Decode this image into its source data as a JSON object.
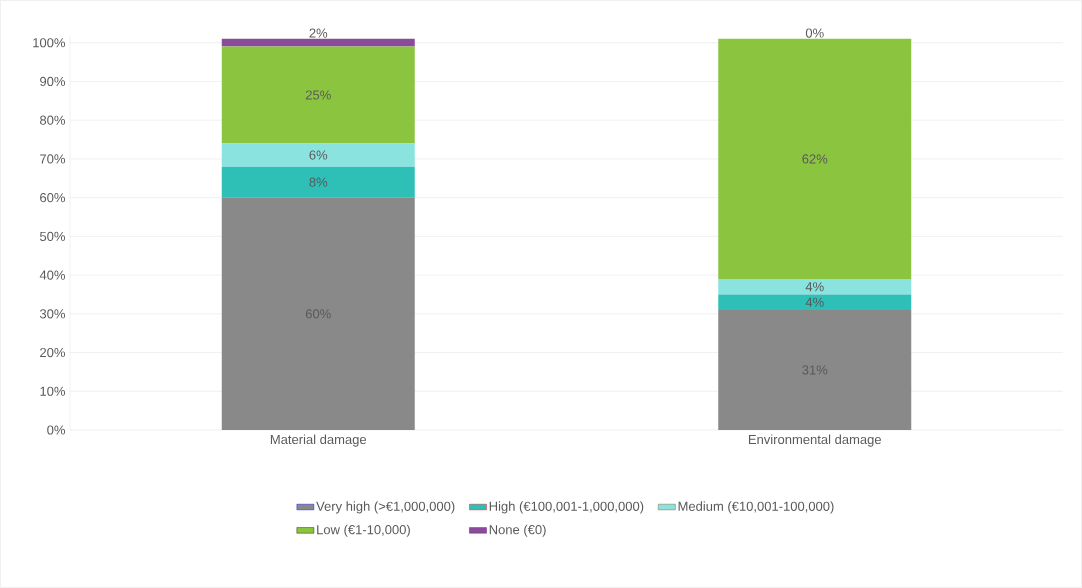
{
  "chart_data": {
    "type": "bar",
    "stacked": true,
    "categories": [
      "Material damage",
      "Environmental damage"
    ],
    "series": [
      {
        "name": "Very high (>€1,000,000)",
        "color": "#898989",
        "values": [
          60,
          31
        ],
        "value_labels": [
          "60%",
          "31%"
        ]
      },
      {
        "name": "High (€100,001-1,000,000)",
        "color": "#2ebfb7",
        "values": [
          8,
          4
        ],
        "value_labels": [
          "8%",
          "4%"
        ]
      },
      {
        "name": "Medium (€10,001-100,000)",
        "color": "#8ae3df",
        "values": [
          6,
          4
        ],
        "value_labels": [
          "6%",
          "4%"
        ]
      },
      {
        "name": "Low (€1-10,000)",
        "color": "#8bc540",
        "values": [
          25,
          62
        ],
        "value_labels": [
          "25%",
          "62%"
        ]
      },
      {
        "name": "None (€0)",
        "color": "#8a4b9a",
        "values": [
          2,
          0
        ],
        "value_labels": [
          "2%",
          "0%"
        ]
      }
    ],
    "ylim": [
      0,
      102
    ],
    "yticks": [
      {
        "value": 0,
        "label": "0%"
      },
      {
        "value": 10,
        "label": "10%"
      },
      {
        "value": 20,
        "label": "20%"
      },
      {
        "value": 30,
        "label": "30%"
      },
      {
        "value": 40,
        "label": "40%"
      },
      {
        "value": 50,
        "label": "50%"
      },
      {
        "value": 60,
        "label": "60%"
      },
      {
        "value": 70,
        "label": "70%"
      },
      {
        "value": 80,
        "label": "80%"
      },
      {
        "value": 90,
        "label": "90%"
      },
      {
        "value": 100,
        "label": "100%"
      }
    ],
    "grid": "y",
    "legend": "bottom"
  }
}
